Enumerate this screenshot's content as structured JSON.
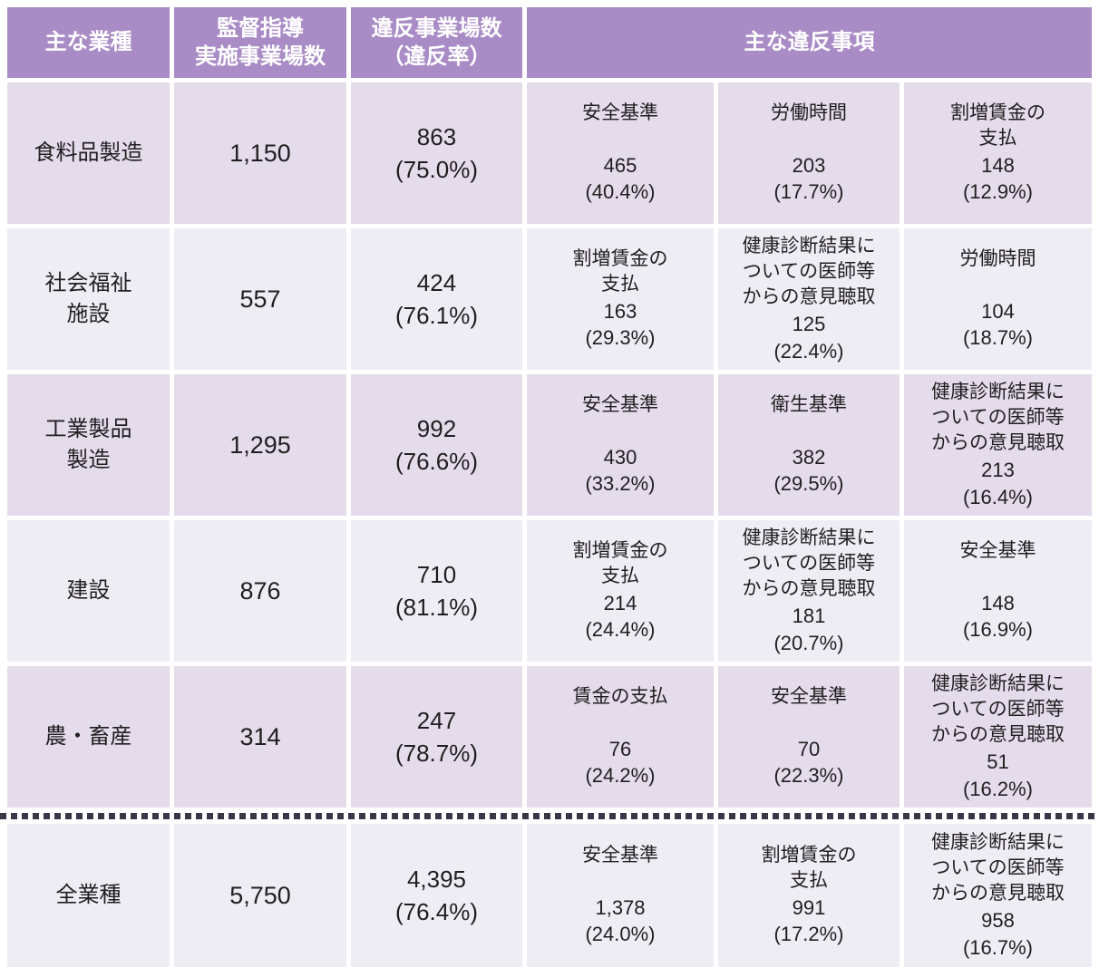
{
  "table": {
    "header": {
      "industry": "主な業種",
      "inspected": "監督指導\n実施事業場数",
      "violations": "違反事業場数\n（違反率）",
      "main_items": "主な違反事項"
    },
    "rows": [
      {
        "industry": "食料品製造",
        "inspected": "1,150",
        "violation_count": "863",
        "violation_rate": "(75.0%)",
        "is_total": false,
        "items": [
          {
            "name": "安全基準",
            "count": "465",
            "rate": "(40.4%)"
          },
          {
            "name": "労働時間",
            "count": "203",
            "rate": "(17.7%)"
          },
          {
            "name": "割増賃金の\n支払",
            "count": "148",
            "rate": "(12.9%)"
          }
        ]
      },
      {
        "industry": "社会福祉\n施設",
        "inspected": "557",
        "violation_count": "424",
        "violation_rate": "(76.1%)",
        "is_total": false,
        "items": [
          {
            "name": "割増賃金の\n支払",
            "count": "163",
            "rate": "(29.3%)"
          },
          {
            "name": "健康診断結果に\nついての医師等\nからの意見聴取",
            "count": "125",
            "rate": "(22.4%)"
          },
          {
            "name": "労働時間",
            "count": "104",
            "rate": "(18.7%)"
          }
        ]
      },
      {
        "industry": "工業製品\n製造",
        "inspected": "1,295",
        "violation_count": "992",
        "violation_rate": "(76.6%)",
        "is_total": false,
        "items": [
          {
            "name": "安全基準",
            "count": "430",
            "rate": "(33.2%)"
          },
          {
            "name": "衛生基準",
            "count": "382",
            "rate": "(29.5%)"
          },
          {
            "name": "健康診断結果に\nついての医師等\nからの意見聴取",
            "count": "213",
            "rate": "(16.4%)"
          }
        ]
      },
      {
        "industry": "建設",
        "inspected": "876",
        "violation_count": "710",
        "violation_rate": "(81.1%)",
        "is_total": false,
        "items": [
          {
            "name": "割増賃金の\n支払",
            "count": "214",
            "rate": "(24.4%)"
          },
          {
            "name": "健康診断結果に\nついての医師等\nからの意見聴取",
            "count": "181",
            "rate": "(20.7%)"
          },
          {
            "name": "安全基準",
            "count": "148",
            "rate": "(16.9%)"
          }
        ]
      },
      {
        "industry": "農・畜産",
        "inspected": "314",
        "violation_count": "247",
        "violation_rate": "(78.7%)",
        "is_total": false,
        "items": [
          {
            "name": "賃金の支払",
            "count": "76",
            "rate": "(24.2%)"
          },
          {
            "name": "安全基準",
            "count": "70",
            "rate": "(22.3%)"
          },
          {
            "name": "健康診断結果に\nついての医師等\nからの意見聴取",
            "count": "51",
            "rate": "(16.2%)"
          }
        ]
      },
      {
        "industry": "全業種",
        "inspected": "5,750",
        "violation_count": "4,395",
        "violation_rate": "(76.4%)",
        "is_total": true,
        "items": [
          {
            "name": "安全基準",
            "count": "1,378",
            "rate": "(24.0%)"
          },
          {
            "name": "割増賃金の\n支払",
            "count": "991",
            "rate": "(17.2%)"
          },
          {
            "name": "健康診断結果に\nついての医師等\nからの意見聴取",
            "count": "958",
            "rate": "(16.7%)"
          }
        ]
      }
    ],
    "colors": {
      "header_bg": "#a98cc6",
      "row_shade_a": "#e4dbeb",
      "row_shade_b": "#efedf4",
      "separator_dots": "#3b3548",
      "header_text": "#ffffff",
      "body_text": "#1f1f1f"
    }
  }
}
